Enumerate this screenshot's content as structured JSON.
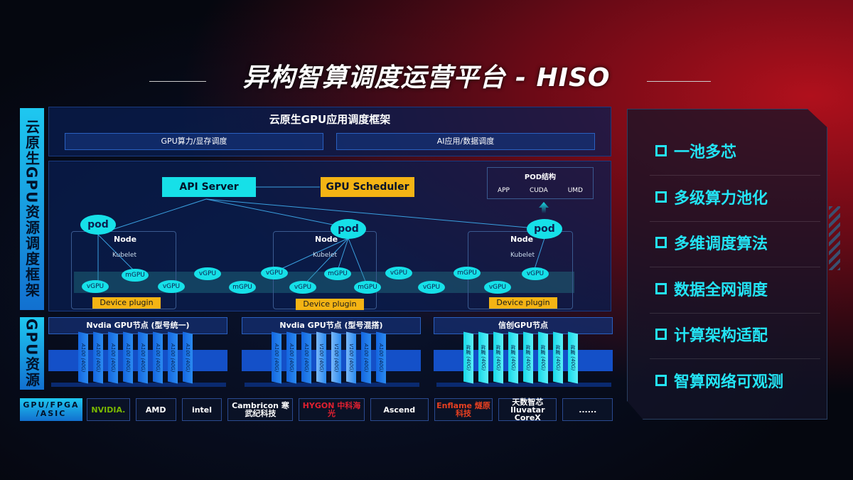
{
  "title": "异构智算调度运营平台 - HISO",
  "left_labels": {
    "framework": "云原生GPU资源调度框架",
    "resources": "GPU资源",
    "hardware": "GPU/FPGA /ASIC"
  },
  "framework": {
    "title": "云原生GPU应用调度框架",
    "bar_left": "GPU算力/显存调度",
    "bar_right": "AI应用/数据调度",
    "api_server": "API Server",
    "gpu_scheduler": "GPU Scheduler",
    "pod_structure": {
      "title": "POD结构",
      "items": [
        "APP",
        "CUDA",
        "UMD"
      ]
    },
    "pod": "pod",
    "node": "Node",
    "kubelet": "Kubelet",
    "device_plugin": "Device plugin",
    "vgpu": "vGPU",
    "mgpu": "mGPU"
  },
  "nodes": [
    {
      "title": "Nvdia GPU节点 (型号统一)",
      "cards": [
        "A100 (40G)",
        "A100 (40G)",
        "A100 (40G)",
        "A100 (40G)",
        "A100 (40G)",
        "A100 (40G)",
        "A100 (40G)",
        "A100 (40G)"
      ]
    },
    {
      "title": "Nvdia GPU节点 (型号混搭)",
      "cards": [
        "A100 (40G)",
        "A100 (40G)",
        "A100 (40G)",
        "V100 (40G)",
        "V100 (40G)",
        "V100 (40G)",
        "A100 (40G)",
        "A100 (40G)"
      ]
    },
    {
      "title": "信创GPU节点",
      "cards": [
        "昇腾 (40G)",
        "昇腾 (40G)",
        "昇腾 (40G)",
        "昇腾 (40G)",
        "昇腾 (40G)",
        "昇腾 (40G)",
        "昇腾 (40G)",
        "昇腾 (40G)"
      ]
    }
  ],
  "vendors": [
    "NVIDIA.",
    "AMD",
    "intel",
    "Cambricon 寒武纪科技",
    "HYGON 中科海光",
    "Ascend",
    "Enflame 燧原科技",
    "天数智芯 Iluvatar CoreX",
    "......"
  ],
  "features": [
    "一池多芯",
    "多级算力池化",
    "多维调度算法",
    "数据全网调度",
    "计算架构适配",
    "智算网络可观测"
  ],
  "colors": {
    "cyan": "#16e0e8",
    "yellow": "#f4b414",
    "blue": "#1270d0",
    "red": "#b0101c"
  }
}
